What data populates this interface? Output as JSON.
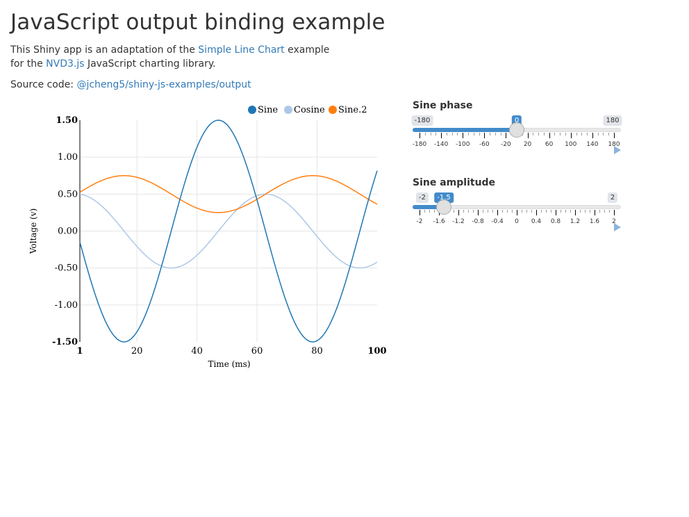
{
  "page": {
    "title": "JavaScript output binding example",
    "intro_1": "This Shiny app is an adaptation of the ",
    "intro_link_1": "Simple Line Chart",
    "intro_2": " example for the ",
    "intro_link_2": "NVD3.js",
    "intro_3": " JavaScript charting library.",
    "source_label": "Source code: ",
    "source_link": "@jcheng5/shiny-js-examples/output"
  },
  "sliders": [
    {
      "label": "Sine phase",
      "min": -180,
      "max": 180,
      "value": 0,
      "min_label": "-180",
      "max_label": "180",
      "value_label": "0",
      "tick_labels": [
        "-180",
        "-140",
        "-100",
        "-60",
        "-20",
        "20",
        "60",
        "100",
        "140",
        "180"
      ],
      "minor_per_major": 3
    },
    {
      "label": "Sine amplitude",
      "min": -2,
      "max": 2,
      "value": -1.5,
      "min_label": "-2",
      "max_label": "2",
      "value_label": "-1.5",
      "tick_labels": [
        "-2",
        "-1.6",
        "-1.2",
        "-0.8",
        "-0.4",
        "0",
        "0.4",
        "0.8",
        "1.2",
        "1.6",
        "2"
      ],
      "minor_per_major": 3
    }
  ],
  "chart_data": {
    "type": "line",
    "xlabel": "Time (ms)",
    "ylabel": "Voltage (v)",
    "xlim": [
      1,
      100
    ],
    "ylim": [
      -1.5,
      1.5
    ],
    "x_ticks": [
      "1",
      "20",
      "40",
      "60",
      "80",
      "100"
    ],
    "y_ticks": [
      "1.50",
      "1.00",
      "0.50",
      "0.00",
      "-0.50",
      "-1.00",
      "-1.50"
    ],
    "legend_position": "top-right",
    "grid": true,
    "series": [
      {
        "name": "Sine",
        "color": "#1f77b4",
        "formula": "y = -1.5 * sin(x / 10)"
      },
      {
        "name": "Cosine",
        "color": "#aec7e8",
        "formula": "y = 0.5 * cos(x / 10)"
      },
      {
        "name": "Sine.2",
        "color": "#ff7f0e",
        "formula": "y = 0.25 * sin(x / 10) + 0.5"
      }
    ]
  }
}
